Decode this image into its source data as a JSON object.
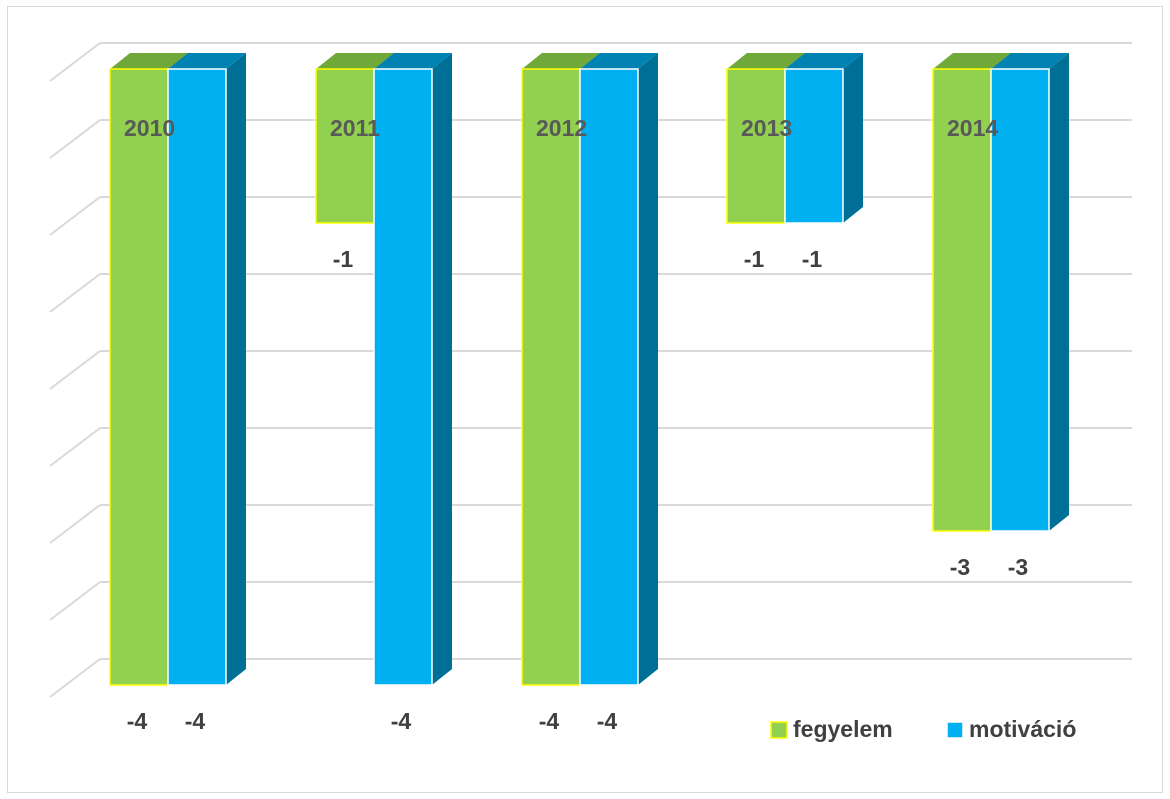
{
  "chart_data": {
    "type": "bar",
    "categories": [
      "2010",
      "2011",
      "2012",
      "2013",
      "2014"
    ],
    "series": [
      {
        "name": "fegyelem",
        "color": "#92d050",
        "side_color": "#6a9a32",
        "top_color": "#70a83a",
        "outline": "#ffff00",
        "values": [
          -4,
          -1,
          -4,
          -1,
          -3
        ]
      },
      {
        "name": "motiváció",
        "color": "#00b0f0",
        "side_color": "#006f96",
        "top_color": "#0083b3",
        "outline": "#ffffff",
        "values": [
          -4,
          -4,
          -4,
          -1,
          -3
        ]
      }
    ],
    "data_labels": [
      [
        "-4",
        "-1",
        "-4",
        "-1",
        "-3"
      ],
      [
        "-4",
        "-4",
        "-4",
        "-1",
        "-3"
      ]
    ],
    "ylim": [
      -4,
      0
    ],
    "grid": true,
    "legend_position": "bottom-right",
    "title": "",
    "xlabel": "",
    "ylabel": ""
  }
}
